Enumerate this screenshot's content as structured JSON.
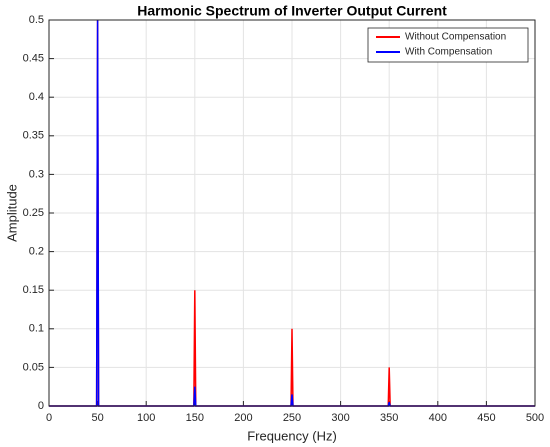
{
  "chart_data": {
    "type": "line",
    "title": "Harmonic Spectrum of Inverter Output Current",
    "x_label": "Frequency (Hz)",
    "y_label": "Amplitude",
    "x": [
      0,
      49,
      50,
      51,
      149,
      150,
      151,
      249,
      250,
      251,
      349,
      350,
      351,
      500
    ],
    "series": [
      {
        "name": "Without Compensation",
        "color": "#ff0000",
        "values": [
          0,
          0,
          0.5,
          0,
          0,
          0.15,
          0,
          0,
          0.1,
          0,
          0,
          0.05,
          0,
          0
        ]
      },
      {
        "name": "With Compensation",
        "color": "#0000ff",
        "values": [
          0,
          0,
          0.5,
          0,
          0,
          0.025,
          0,
          0,
          0.015,
          0,
          0,
          0.005,
          0,
          0
        ]
      }
    ],
    "xlim": [
      0,
      500
    ],
    "xticks": [
      0,
      50,
      100,
      150,
      200,
      250,
      300,
      350,
      400,
      450,
      500
    ],
    "ylim": [
      0,
      0.5
    ],
    "yticks": [
      0,
      0.05,
      0.1,
      0.15,
      0.2,
      0.25,
      0.3,
      0.35,
      0.4,
      0.45,
      0.5
    ],
    "grid": true,
    "legend": "upper right"
  }
}
